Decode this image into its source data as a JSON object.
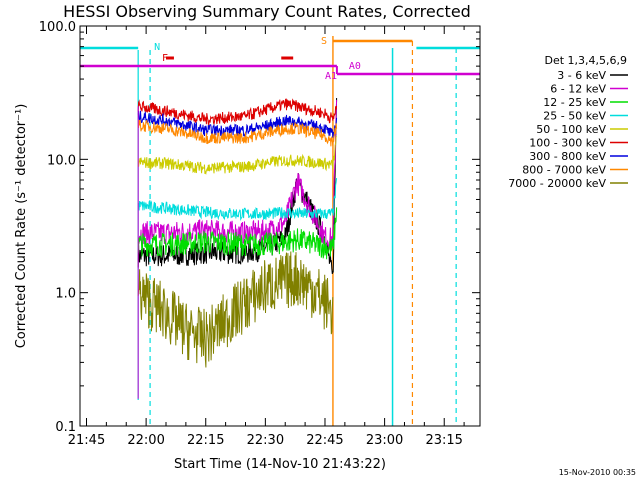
{
  "chart_data": {
    "type": "line",
    "title": "HESSI Observing Summary Count Rates, Corrected",
    "xlabel": "Start Time (14-Nov-10 21:43:22)",
    "ylabel": "Corrected Count Rate (s⁻¹ detector⁻¹)",
    "yscale": "log",
    "ylim": [
      0.1,
      100
    ],
    "xlim": [
      "21:43:22",
      "23:24:00"
    ],
    "x_ticks": [
      "21:45",
      "22:00",
      "22:15",
      "22:30",
      "22:45",
      "23:00",
      "23:15"
    ],
    "y_ticks": [
      "0.1",
      "1.0",
      "10.0",
      "100.0"
    ],
    "legend_title": "Det 1,3,4,5,6,9",
    "legend_position": "right",
    "series": [
      {
        "name": "3 - 6 keV",
        "color": "#000000",
        "x": [
          "21:58",
          "22:05",
          "22:15",
          "22:25",
          "22:31",
          "22:35",
          "22:38",
          "22:45",
          "22:47",
          "22:48"
        ],
        "y": [
          1.9,
          1.9,
          2.0,
          2.0,
          2.2,
          2.6,
          6.8,
          2.6,
          1.25,
          38
        ]
      },
      {
        "name": "6 - 12 keV",
        "color": "#d000d0",
        "x": [
          "21:58",
          "22:05",
          "22:15",
          "22:25",
          "22:31",
          "22:35",
          "22:38",
          "22:45",
          "22:47",
          "22:48"
        ],
        "y": [
          2.8,
          2.8,
          2.9,
          2.8,
          2.9,
          3.4,
          6.8,
          2.6,
          2.5,
          38
        ]
      },
      {
        "name": "12 - 25 keV",
        "color": "#00dd00",
        "x": [
          "21:58",
          "22:05",
          "22:15",
          "22:25",
          "22:31",
          "22:35",
          "22:38",
          "22:45",
          "22:47",
          "22:48"
        ],
        "y": [
          2.3,
          2.3,
          2.4,
          2.3,
          2.3,
          2.4,
          2.5,
          2.2,
          2.1,
          4.5
        ]
      },
      {
        "name": "25 - 50 keV",
        "color": "#00dddd",
        "x": [
          "21:58",
          "22:05",
          "22:15",
          "22:25",
          "22:31",
          "22:35",
          "22:38",
          "22:45",
          "22:47",
          "22:48"
        ],
        "y": [
          4.5,
          4.3,
          4.0,
          3.9,
          3.9,
          4.0,
          3.9,
          3.9,
          3.9,
          7.0
        ]
      },
      {
        "name": "50 - 100 keV",
        "color": "#cccc00",
        "x": [
          "21:58",
          "22:05",
          "22:15",
          "22:25",
          "22:31",
          "22:35",
          "22:38",
          "22:45",
          "22:47",
          "22:48"
        ],
        "y": [
          9.5,
          9.3,
          8.6,
          8.8,
          9.5,
          9.8,
          9.8,
          9.3,
          9.0,
          15
        ]
      },
      {
        "name": "100 - 300 keV",
        "color": "#dd0000",
        "x": [
          "21:58",
          "22:05",
          "22:15",
          "22:25",
          "22:31",
          "22:35",
          "22:38",
          "22:45",
          "22:47",
          "22:48"
        ],
        "y": [
          25,
          23,
          20,
          21,
          24,
          26,
          25,
          22,
          20,
          25
        ]
      },
      {
        "name": "300 - 800 keV",
        "color": "#0000dd",
        "x": [
          "21:58",
          "22:05",
          "22:15",
          "22:25",
          "22:31",
          "22:35",
          "22:38",
          "22:45",
          "22:47",
          "22:48"
        ],
        "y": [
          21,
          19.5,
          16.5,
          16.5,
          18,
          19.5,
          19,
          17,
          15,
          20
        ]
      },
      {
        "name": "800 - 7000 keV",
        "color": "#ff8800",
        "x": [
          "21:58",
          "22:05",
          "22:15",
          "22:25",
          "22:31",
          "22:35",
          "22:38",
          "22:45",
          "22:47",
          "22:48"
        ],
        "y": [
          18,
          17,
          14.5,
          14.5,
          16,
          17,
          17,
          15,
          13.5,
          18
        ]
      },
      {
        "name": "7000 - 20000 keV",
        "color": "#808000",
        "x": [
          "21:58",
          "22:05",
          "22:10",
          "22:15",
          "22:22",
          "22:30",
          "22:38",
          "22:43",
          "22:47"
        ],
        "y": [
          1.0,
          0.7,
          0.52,
          0.45,
          0.7,
          1.1,
          1.3,
          1.0,
          0.72
        ]
      }
    ],
    "flags": [
      {
        "label": "N",
        "color": "#00dddd"
      },
      {
        "label": "F",
        "color": "#dd0000"
      },
      {
        "label": "S",
        "color": "#ff8800"
      },
      {
        "label": "A1",
        "color": "#d000d0"
      },
      {
        "label": "A0",
        "color": "#d000d0"
      }
    ]
  },
  "footer": {
    "date": "15-Nov-2010 00:35"
  }
}
